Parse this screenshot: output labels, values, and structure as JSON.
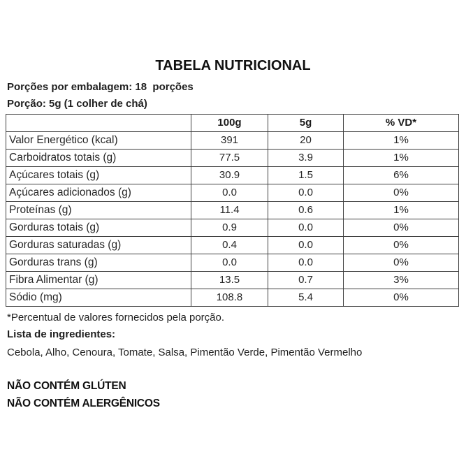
{
  "title": "TABELA NUTRICIONAL",
  "servings_line": "Porções por embalagem: 18  porções",
  "portion_line": "Porção: 5g (1 colher de chá)",
  "table": {
    "headers": [
      "",
      "100g",
      "5g",
      "% VD*"
    ],
    "rows": [
      {
        "label": "Valor Energético (kcal)",
        "per_100g": "391",
        "per_5g": "20",
        "pct_vd": "1%"
      },
      {
        "label": "Carboidratos totais (g)",
        "per_100g": "77.5",
        "per_5g": "3.9",
        "pct_vd": "1%"
      },
      {
        "label": "Açúcares totais (g)",
        "per_100g": "30.9",
        "per_5g": "1.5",
        "pct_vd": "6%"
      },
      {
        "label": "Açúcares adicionados (g)",
        "per_100g": "0.0",
        "per_5g": "0.0",
        "pct_vd": "0%"
      },
      {
        "label": "Proteínas (g)",
        "per_100g": "11.4",
        "per_5g": "0.6",
        "pct_vd": "1%"
      },
      {
        "label": "Gorduras totais (g)",
        "per_100g": "0.9",
        "per_5g": "0.0",
        "pct_vd": "0%"
      },
      {
        "label": "Gorduras saturadas (g)",
        "per_100g": "0.4",
        "per_5g": "0.0",
        "pct_vd": "0%"
      },
      {
        "label": "Gorduras trans (g)",
        "per_100g": "0.0",
        "per_5g": "0.0",
        "pct_vd": "0%"
      },
      {
        "label": "Fibra Alimentar (g)",
        "per_100g": "13.5",
        "per_5g": "0.7",
        "pct_vd": "3%"
      },
      {
        "label": "Sódio (mg)",
        "per_100g": "108.8",
        "per_5g": "5.4",
        "pct_vd": "0%"
      }
    ]
  },
  "footnote": "*Percentual de valores fornecidos pela porção.",
  "ingredients_heading": "Lista de ingredientes:",
  "ingredients": "Cebola, Alho, Cenoura, Tomate, Salsa, Pimentão Verde, Pimentão Vermelho",
  "claims": [
    "NÃO CONTÉM GLÚTEN",
    "NÃO CONTÉM ALERGÊNICOS"
  ]
}
